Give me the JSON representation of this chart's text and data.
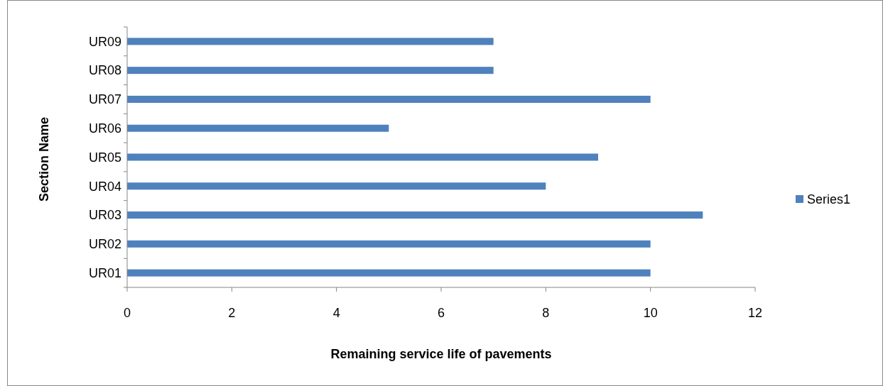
{
  "chart_data": {
    "type": "bar",
    "orientation": "horizontal",
    "xlabel": "Remaining service life of pavements",
    "ylabel": "Section Name",
    "categories": [
      "UR09",
      "UR08",
      "UR07",
      "UR06",
      "UR05",
      "UR04",
      "UR03",
      "UR02",
      "UR01"
    ],
    "series": [
      {
        "name": "Series1",
        "color": "#4f81bd",
        "values": [
          7,
          7,
          10,
          5,
          9,
          8,
          11,
          10,
          10
        ]
      }
    ],
    "xlim": [
      0,
      12
    ],
    "xticks": [
      0,
      2,
      4,
      6,
      8,
      10,
      12
    ],
    "grid": false,
    "legend": "right"
  }
}
